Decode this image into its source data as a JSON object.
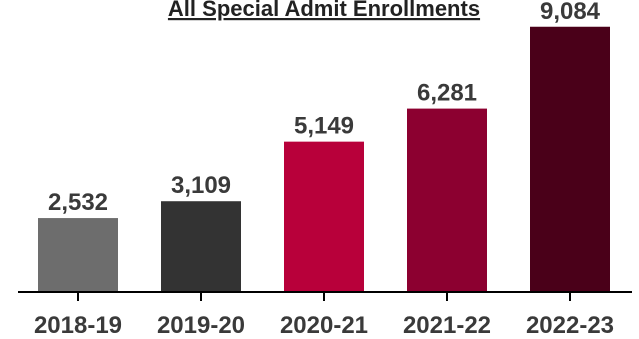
{
  "chart_data": {
    "type": "bar",
    "title": "All Special Admit Enrollments",
    "xlabel": "",
    "ylabel": "",
    "categories": [
      "2018-19",
      "2019-20",
      "2020-21",
      "2021-22",
      "2022-23"
    ],
    "values": [
      2532,
      3109,
      5149,
      6281,
      9084
    ],
    "value_labels": [
      "2,532",
      "3,109",
      "5,149",
      "6,281",
      "9,084"
    ],
    "bar_colors": [
      "#6d6d6d",
      "#333333",
      "#b8003a",
      "#8c0030",
      "#4a0019"
    ],
    "ylim": [
      0,
      10000
    ],
    "grid": false,
    "legend": "none"
  }
}
